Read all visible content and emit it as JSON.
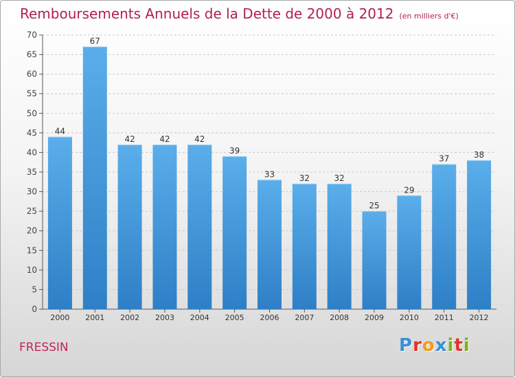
{
  "header": {
    "title": "Remboursements Annuels de la Dette de 2000 à 2012",
    "subtitle": "(en milliers d'€)"
  },
  "footer": {
    "commune": "FRESSIN",
    "logo_text": "Proxiti",
    "logo_colors": [
      "#3a8fd6",
      "#e3322b",
      "#f29a1d",
      "#3a8fd6",
      "#7ab51d",
      "#e3322b",
      "#7ab51d"
    ]
  },
  "colors": {
    "title": "#b01e55",
    "bar_top": "#5aaeea",
    "bar_bottom": "#2e7fc6"
  },
  "chart_data": {
    "type": "bar",
    "title": "Remboursements Annuels de la Dette de 2000 à 2012",
    "subtitle": "(en milliers d'€)",
    "categories": [
      "2000",
      "2001",
      "2002",
      "2003",
      "2004",
      "2005",
      "2006",
      "2007",
      "2008",
      "2009",
      "2010",
      "2011",
      "2012"
    ],
    "values": [
      44,
      67,
      42,
      42,
      42,
      39,
      33,
      32,
      32,
      25,
      29,
      37,
      38
    ],
    "xlabel": "",
    "ylabel": "",
    "ylim": [
      0,
      70
    ],
    "yticks": [
      0,
      5,
      10,
      15,
      20,
      25,
      30,
      35,
      40,
      45,
      50,
      55,
      60,
      65,
      70
    ],
    "grid": "horizontal dashed",
    "data_labels": true
  }
}
